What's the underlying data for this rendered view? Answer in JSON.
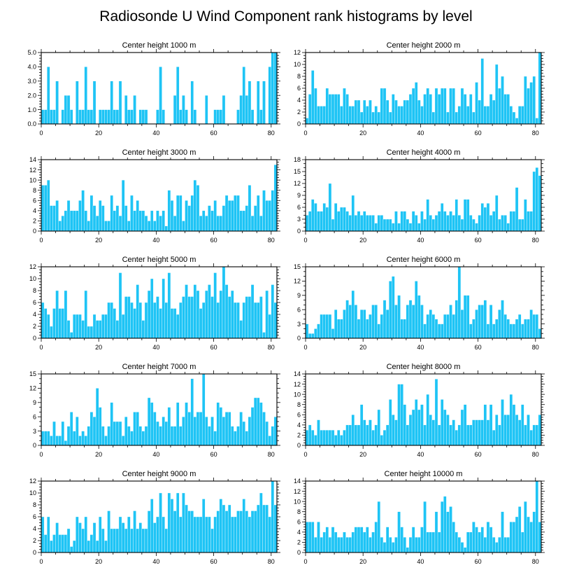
{
  "title": "Radiosonde U Wind Component rank histograms by level",
  "colors": {
    "bar": "#1ec4f5",
    "frame": "#000000"
  },
  "chart_data": [
    {
      "type": "bar",
      "title": "Center height 1000 m",
      "xlim": [
        0,
        82
      ],
      "ylim": [
        0,
        5
      ],
      "xticks": [
        0,
        20,
        40,
        60,
        80
      ],
      "yticks": [
        0,
        1,
        2,
        3,
        4,
        5
      ],
      "ytick_labels": [
        "0.0",
        "1.0",
        "2.0",
        "3.0",
        "4.0",
        "5.0"
      ],
      "values": [
        1,
        1,
        4,
        1,
        1,
        3,
        0,
        1,
        2,
        2,
        1,
        0,
        3,
        1,
        1,
        4,
        1,
        1,
        3,
        0,
        1,
        1,
        1,
        1,
        3,
        1,
        1,
        3,
        0,
        2,
        1,
        1,
        2,
        0,
        1,
        1,
        1,
        0,
        0,
        0,
        1,
        4,
        1,
        0,
        0,
        0,
        2,
        4,
        1,
        2,
        1,
        0,
        3,
        1,
        0,
        0,
        0,
        2,
        0,
        0,
        1,
        1,
        1,
        2,
        0,
        0,
        0,
        0,
        1,
        2,
        4,
        2,
        3,
        1,
        0,
        3,
        1,
        3,
        0,
        4,
        5,
        5
      ]
    },
    {
      "type": "bar",
      "title": "Center height 2000 m",
      "xlim": [
        0,
        82
      ],
      "ylim": [
        0,
        12
      ],
      "xticks": [
        0,
        20,
        40,
        60,
        80
      ],
      "yticks": [
        0,
        2,
        4,
        6,
        8,
        10,
        12
      ],
      "ytick_labels": [
        "0",
        "2",
        "4",
        "6",
        "8",
        "10",
        "12"
      ],
      "values": [
        1,
        5,
        9,
        6,
        3,
        3,
        3,
        6,
        5,
        5,
        5,
        5,
        3,
        6,
        5,
        3,
        3,
        4,
        4,
        2,
        4,
        3,
        4,
        2,
        3,
        2,
        6,
        6,
        4,
        2,
        5,
        4,
        3,
        3,
        4,
        4,
        5,
        6,
        7,
        4,
        3,
        5,
        6,
        5,
        2,
        6,
        5,
        6,
        6,
        2,
        6,
        6,
        2,
        3,
        6,
        5,
        3,
        5,
        2,
        7,
        4,
        11,
        3,
        3,
        5,
        4,
        10,
        6,
        8,
        5,
        5,
        3,
        2,
        1,
        3,
        3,
        8,
        6,
        7,
        8,
        1,
        12
      ]
    },
    {
      "type": "bar",
      "title": "Center height 3000 m",
      "xlim": [
        0,
        82
      ],
      "ylim": [
        0,
        14
      ],
      "xticks": [
        0,
        20,
        40,
        60,
        80
      ],
      "yticks": [
        0,
        2,
        4,
        6,
        8,
        10,
        12,
        14
      ],
      "ytick_labels": [
        "0",
        "2",
        "4",
        "6",
        "8",
        "10",
        "12",
        "14"
      ],
      "values": [
        9,
        9,
        10,
        5,
        5,
        6,
        2,
        3,
        4,
        6,
        4,
        4,
        4,
        6,
        8,
        4,
        2,
        7,
        5,
        3,
        6,
        5,
        2,
        2,
        7,
        4,
        5,
        3,
        10,
        5,
        2,
        7,
        4,
        6,
        4,
        4,
        3,
        2,
        4,
        2,
        4,
        3,
        4,
        1,
        8,
        6,
        3,
        7,
        7,
        2,
        6,
        5,
        7,
        10,
        9,
        3,
        4,
        3,
        5,
        4,
        6,
        3,
        3,
        5,
        7,
        6,
        6,
        7,
        7,
        4,
        4,
        5,
        9,
        3,
        5,
        7,
        3,
        8,
        6,
        6,
        8,
        13
      ]
    },
    {
      "type": "bar",
      "title": "Center height 4000 m",
      "xlim": [
        0,
        82
      ],
      "ylim": [
        0,
        18
      ],
      "xticks": [
        0,
        20,
        40,
        60,
        80
      ],
      "yticks": [
        0,
        3,
        6,
        9,
        12,
        15,
        18
      ],
      "ytick_labels": [
        "0",
        "3",
        "6",
        "9",
        "12",
        "15",
        "18"
      ],
      "values": [
        4,
        5,
        8,
        7,
        5,
        5,
        7,
        6,
        12,
        3,
        7,
        5,
        6,
        6,
        5,
        4,
        9,
        4,
        5,
        4,
        5,
        4,
        4,
        4,
        2,
        4,
        4,
        3,
        3,
        3,
        2,
        5,
        2,
        5,
        5,
        3,
        2,
        5,
        4,
        2,
        5,
        3,
        8,
        4,
        3,
        4,
        5,
        7,
        5,
        4,
        5,
        4,
        8,
        4,
        3,
        8,
        8,
        4,
        3,
        2,
        4,
        7,
        6,
        7,
        4,
        5,
        9,
        3,
        4,
        4,
        2,
        5,
        5,
        11,
        3,
        3,
        8,
        5,
        5,
        15,
        16,
        14
      ]
    },
    {
      "type": "bar",
      "title": "Center height 5000 m",
      "xlim": [
        0,
        82
      ],
      "ylim": [
        0,
        12
      ],
      "xticks": [
        0,
        20,
        40,
        60,
        80
      ],
      "yticks": [
        0,
        2,
        4,
        6,
        8,
        10,
        12
      ],
      "ytick_labels": [
        "0",
        "2",
        "4",
        "6",
        "8",
        "10",
        "12"
      ],
      "values": [
        6,
        5,
        4,
        2,
        5,
        8,
        5,
        5,
        8,
        3,
        1,
        4,
        4,
        4,
        3,
        8,
        2,
        2,
        4,
        3,
        3,
        4,
        4,
        6,
        6,
        5,
        3,
        11,
        4,
        7,
        7,
        6,
        5,
        9,
        6,
        3,
        6,
        8,
        10,
        6,
        7,
        5,
        10,
        6,
        11,
        5,
        5,
        4,
        6,
        7,
        9,
        7,
        7,
        9,
        8,
        5,
        6,
        8,
        9,
        7,
        11,
        6,
        8,
        12,
        9,
        7,
        8,
        6,
        6,
        3,
        6,
        7,
        7,
        9,
        6,
        6,
        7,
        1,
        8,
        4,
        9,
        6
      ]
    },
    {
      "type": "bar",
      "title": "Center height 6000 m",
      "xlim": [
        0,
        82
      ],
      "ylim": [
        0,
        15
      ],
      "xticks": [
        0,
        20,
        40,
        60,
        80
      ],
      "yticks": [
        0,
        3,
        6,
        9,
        12,
        15
      ],
      "ytick_labels": [
        "0",
        "3",
        "6",
        "9",
        "12",
        "15"
      ],
      "values": [
        3,
        1,
        1,
        2,
        3,
        5,
        5,
        5,
        5,
        2,
        6,
        4,
        4,
        6,
        8,
        7,
        10,
        7,
        4,
        6,
        6,
        4,
        5,
        7,
        7,
        3,
        5,
        8,
        6,
        12,
        13,
        7,
        9,
        4,
        4,
        7,
        8,
        7,
        12,
        9,
        7,
        3,
        5,
        6,
        5,
        4,
        3,
        3,
        5,
        5,
        7,
        5,
        8,
        15,
        6,
        9,
        9,
        3,
        4,
        6,
        7,
        7,
        8,
        3,
        7,
        3,
        4,
        6,
        8,
        5,
        4,
        3,
        3,
        4,
        5,
        3,
        4,
        4,
        6,
        5,
        5,
        2
      ]
    },
    {
      "type": "bar",
      "title": "Center height 7000 m",
      "xlim": [
        0,
        82
      ],
      "ylim": [
        0,
        15
      ],
      "xticks": [
        0,
        20,
        40,
        60,
        80
      ],
      "yticks": [
        0,
        3,
        6,
        9,
        12,
        15
      ],
      "ytick_labels": [
        "0",
        "3",
        "6",
        "9",
        "12",
        "15"
      ],
      "values": [
        3,
        3,
        3,
        2,
        5,
        2,
        2,
        5,
        1,
        4,
        7,
        3,
        6,
        2,
        3,
        2,
        4,
        7,
        6,
        12,
        8,
        4,
        2,
        4,
        9,
        5,
        5,
        5,
        2,
        6,
        4,
        3,
        7,
        7,
        4,
        3,
        4,
        10,
        9,
        7,
        5,
        4,
        6,
        5,
        8,
        4,
        4,
        9,
        4,
        6,
        9,
        7,
        14,
        6,
        7,
        7,
        15,
        6,
        4,
        6,
        3,
        9,
        8,
        6,
        7,
        7,
        4,
        3,
        4,
        7,
        5,
        3,
        6,
        8,
        10,
        10,
        9,
        7,
        5,
        2,
        4,
        6
      ]
    },
    {
      "type": "bar",
      "title": "Center height 8000 m",
      "xlim": [
        0,
        82
      ],
      "ylim": [
        0,
        14
      ],
      "xticks": [
        0,
        20,
        40,
        60,
        80
      ],
      "yticks": [
        0,
        2,
        4,
        6,
        8,
        10,
        12,
        14
      ],
      "ytick_labels": [
        "0",
        "2",
        "4",
        "6",
        "8",
        "10",
        "12",
        "14"
      ],
      "values": [
        3,
        4,
        3,
        2,
        5,
        3,
        3,
        3,
        3,
        3,
        2,
        3,
        2,
        3,
        4,
        4,
        6,
        4,
        4,
        8,
        5,
        4,
        5,
        3,
        4,
        7,
        2,
        3,
        4,
        9,
        6,
        5,
        12,
        12,
        8,
        4,
        6,
        7,
        9,
        7,
        8,
        4,
        10,
        6,
        5,
        13,
        4,
        9,
        7,
        6,
        4,
        5,
        3,
        4,
        7,
        8,
        4,
        4,
        5,
        5,
        5,
        5,
        8,
        5,
        8,
        3,
        6,
        4,
        9,
        6,
        6,
        10,
        8,
        6,
        5,
        8,
        4,
        6,
        3,
        4,
        4,
        6
      ]
    },
    {
      "type": "bar",
      "title": "Center height 9000 m",
      "xlim": [
        0,
        82
      ],
      "ylim": [
        0,
        12
      ],
      "xticks": [
        0,
        20,
        40,
        60,
        80
      ],
      "yticks": [
        0,
        2,
        4,
        6,
        8,
        10,
        12
      ],
      "ytick_labels": [
        "0",
        "2",
        "4",
        "6",
        "8",
        "10",
        "12"
      ],
      "values": [
        6,
        3,
        6,
        2,
        3,
        5,
        3,
        3,
        3,
        4,
        1,
        2,
        6,
        5,
        4,
        6,
        2,
        3,
        5,
        2,
        6,
        4,
        2,
        7,
        4,
        4,
        4,
        6,
        5,
        4,
        6,
        4,
        7,
        4,
        5,
        4,
        4,
        7,
        9,
        5,
        6,
        10,
        6,
        4,
        10,
        9,
        7,
        10,
        6,
        10,
        8,
        7,
        7,
        6,
        6,
        6,
        9,
        6,
        6,
        4,
        6,
        7,
        9,
        8,
        7,
        8,
        6,
        6,
        7,
        7,
        9,
        7,
        6,
        7,
        7,
        8,
        10,
        8,
        8,
        6,
        12,
        8
      ]
    },
    {
      "type": "bar",
      "title": "Center height 10000 m",
      "xlim": [
        0,
        82
      ],
      "ylim": [
        0,
        14
      ],
      "xticks": [
        0,
        20,
        40,
        60,
        80
      ],
      "yticks": [
        0,
        2,
        4,
        6,
        8,
        10,
        12,
        14
      ],
      "ytick_labels": [
        "0",
        "2",
        "4",
        "6",
        "8",
        "10",
        "12",
        "14"
      ],
      "values": [
        6,
        6,
        6,
        3,
        6,
        3,
        4,
        5,
        3,
        5,
        4,
        3,
        3,
        4,
        3,
        3,
        4,
        5,
        5,
        5,
        4,
        5,
        3,
        4,
        6,
        10,
        3,
        2,
        5,
        3,
        2,
        3,
        8,
        5,
        3,
        1,
        3,
        5,
        3,
        3,
        5,
        10,
        4,
        4,
        4,
        8,
        4,
        10,
        11,
        8,
        9,
        6,
        4,
        3,
        2,
        1,
        4,
        4,
        6,
        5,
        4,
        5,
        3,
        6,
        5,
        3,
        2,
        3,
        8,
        3,
        3,
        6,
        6,
        7,
        9,
        4,
        10,
        7,
        6,
        8,
        14,
        6
      ]
    }
  ]
}
